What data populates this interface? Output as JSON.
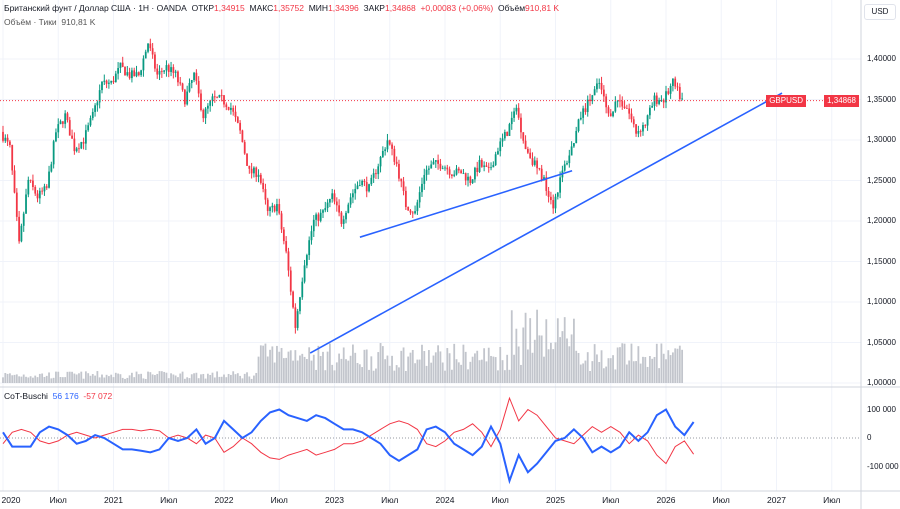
{
  "header": {
    "symbol_title": "Британский фунт / Доллар США · 1Н · OANDA",
    "open_label": "ОТКР",
    "open": "1,34915",
    "high_label": "МАКС",
    "high": "1,35752",
    "low_label": "МИН",
    "low": "1,34396",
    "close_label": "ЗАКР",
    "close": "1,34868",
    "change": "+0,00083 (+0,06%)",
    "volume_label": "Объём",
    "volume": "910,81 K",
    "volume_line_label": "Объём · Тики",
    "volume_line_value": "910,81 K"
  },
  "price_axis": {
    "currency": "USD",
    "ticks": [
      "1,40000",
      "1,35000",
      "1,30000",
      "1,25000",
      "1,20000",
      "1,15000",
      "1,10000",
      "1,05000",
      "1,00000"
    ],
    "symbol_tag": "GBPUSD",
    "last_price": "1,34868"
  },
  "indicator": {
    "name": "CoT-Buschi",
    "value_blue": "56 176",
    "value_red": "-57 072",
    "ticks": [
      "100 000",
      "0",
      "-100 000"
    ]
  },
  "time_axis": [
    "2020",
    "Июл",
    "2021",
    "Июл",
    "2022",
    "Июл",
    "2023",
    "Июл",
    "2024",
    "Июл",
    "2025",
    "Июл",
    "2026",
    "Июл",
    "2027",
    "Июл"
  ],
  "colors": {
    "up": "#089981",
    "down": "#f23645",
    "blue": "#2962ff",
    "red": "#f23645",
    "trend": "#2962ff"
  },
  "chart_data": {
    "type": "candlestick",
    "symbol": "GBPUSD",
    "start": 2020.0,
    "step_months": 1,
    "monthly_close": [
      1.31,
      1.29,
      1.17,
      1.25,
      1.23,
      1.24,
      1.31,
      1.33,
      1.29,
      1.3,
      1.33,
      1.37,
      1.37,
      1.39,
      1.38,
      1.38,
      1.42,
      1.38,
      1.39,
      1.38,
      1.35,
      1.38,
      1.33,
      1.35,
      1.35,
      1.34,
      1.31,
      1.26,
      1.26,
      1.21,
      1.22,
      1.16,
      1.07,
      1.15,
      1.2,
      1.21,
      1.23,
      1.2,
      1.23,
      1.25,
      1.24,
      1.27,
      1.3,
      1.27,
      1.22,
      1.21,
      1.26,
      1.27,
      1.27,
      1.26,
      1.26,
      1.25,
      1.27,
      1.26,
      1.29,
      1.31,
      1.34,
      1.29,
      1.27,
      1.25,
      1.22,
      1.26,
      1.29,
      1.33,
      1.35,
      1.37,
      1.33,
      1.35,
      1.34,
      1.31,
      1.32,
      1.35,
      1.35,
      1.37,
      1.349
    ],
    "ylim": [
      1.0,
      1.43
    ],
    "cot_blue_thousands": [
      20,
      -30,
      -30,
      -30,
      20,
      40,
      30,
      10,
      -20,
      -10,
      10,
      0,
      -20,
      -40,
      -40,
      -45,
      -50,
      -40,
      0,
      -10,
      0,
      30,
      -20,
      0,
      60,
      30,
      0,
      20,
      60,
      90,
      100,
      80,
      70,
      60,
      80,
      70,
      50,
      30,
      30,
      20,
      0,
      -20,
      -60,
      -80,
      -60,
      -40,
      30,
      40,
      20,
      -20,
      -40,
      -60,
      -30,
      40,
      -20,
      -150,
      -60,
      -120,
      -90,
      -50,
      -10,
      0,
      30,
      0,
      -50,
      -30,
      -50,
      -30,
      20,
      -10,
      20,
      80,
      100,
      40,
      10,
      56
    ],
    "cot_red_thousands": [
      -20,
      20,
      30,
      20,
      -10,
      -20,
      -10,
      10,
      20,
      10,
      0,
      10,
      20,
      30,
      30,
      25,
      30,
      25,
      0,
      10,
      0,
      -20,
      10,
      0,
      -50,
      -30,
      0,
      -20,
      -50,
      -70,
      -75,
      -60,
      -50,
      -40,
      -60,
      -50,
      -40,
      -20,
      -20,
      -10,
      10,
      30,
      50,
      60,
      50,
      30,
      -20,
      -30,
      -10,
      20,
      30,
      50,
      20,
      -30,
      30,
      140,
      60,
      100,
      80,
      40,
      0,
      -10,
      -20,
      10,
      40,
      20,
      40,
      20,
      -20,
      10,
      -10,
      -60,
      -90,
      -30,
      -10,
      -57
    ],
    "trendlines": [
      {
        "from": [
          2023.23,
          1.18
        ],
        "to": [
          2025.15,
          1.262
        ]
      },
      {
        "from": [
          2022.78,
          1.037
        ],
        "to": [
          2027.05,
          1.358
        ]
      }
    ]
  }
}
